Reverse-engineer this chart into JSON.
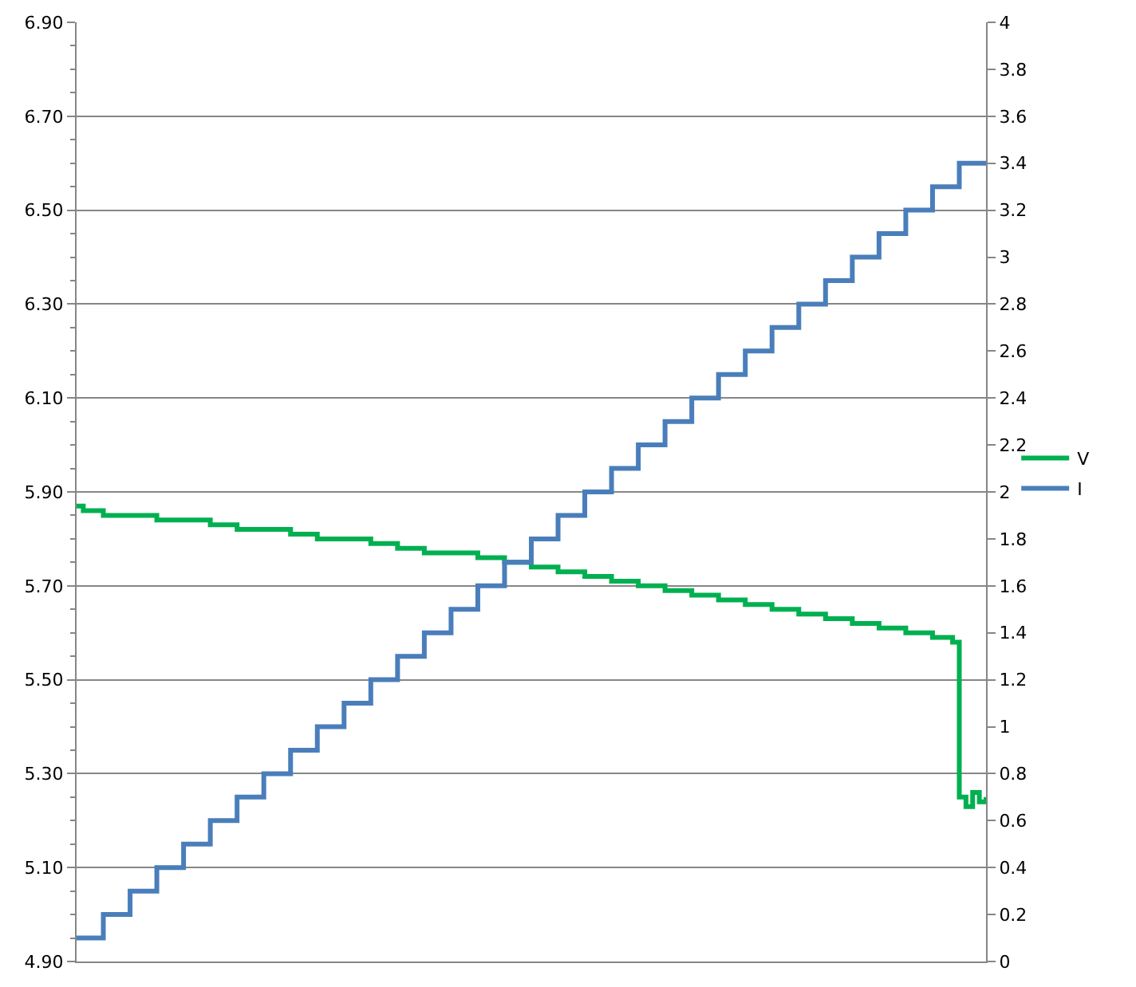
{
  "chart_data": {
    "type": "step",
    "categories": [
      null,
      null,
      null,
      null,
      null,
      null,
      null,
      null,
      null,
      null,
      null,
      null,
      null,
      null,
      null,
      null,
      null,
      null,
      null,
      null,
      null,
      null,
      null,
      null,
      null,
      null,
      null,
      null,
      null,
      null,
      null,
      null,
      null,
      null,
      null,
      null,
      null,
      null,
      null,
      null,
      null,
      null,
      null,
      null,
      null,
      null,
      null,
      null,
      null,
      null,
      null,
      null,
      null,
      null,
      null,
      null,
      null,
      null,
      null,
      null,
      null,
      null,
      null,
      null,
      null,
      null,
      null,
      null,
      null,
      null,
      null,
      null,
      null,
      null,
      null,
      null,
      null,
      null,
      null,
      null,
      null,
      null,
      null,
      null,
      null,
      null,
      null,
      null,
      null,
      null,
      null,
      null,
      null,
      null,
      null,
      null,
      null,
      null,
      null,
      null,
      null,
      null,
      null,
      null,
      null,
      null,
      null,
      null,
      null,
      null,
      null,
      null,
      null,
      null,
      null,
      null,
      null,
      null,
      null,
      null,
      null,
      null,
      null,
      null,
      null,
      null,
      null,
      null,
      null,
      null,
      null,
      null,
      null,
      null,
      null,
      null,
      null
    ],
    "series": [
      {
        "name": "V",
        "color": "#00b050",
        "axis": "y",
        "values": [
          5.87,
          5.86,
          5.86,
          5.86,
          5.85,
          5.85,
          5.85,
          5.85,
          5.85,
          5.85,
          5.85,
          5.85,
          5.84,
          5.84,
          5.84,
          5.84,
          5.84,
          5.84,
          5.84,
          5.84,
          5.83,
          5.83,
          5.83,
          5.83,
          5.82,
          5.82,
          5.82,
          5.82,
          5.82,
          5.82,
          5.82,
          5.82,
          5.81,
          5.81,
          5.81,
          5.81,
          5.8,
          5.8,
          5.8,
          5.8,
          5.8,
          5.8,
          5.8,
          5.8,
          5.79,
          5.79,
          5.79,
          5.79,
          5.78,
          5.78,
          5.78,
          5.78,
          5.77,
          5.77,
          5.77,
          5.77,
          5.77,
          5.77,
          5.77,
          5.77,
          5.76,
          5.76,
          5.76,
          5.76,
          5.75,
          5.75,
          5.75,
          5.75,
          5.74,
          5.74,
          5.74,
          5.74,
          5.73,
          5.73,
          5.73,
          5.73,
          5.72,
          5.72,
          5.72,
          5.72,
          5.71,
          5.71,
          5.71,
          5.71,
          5.7,
          5.7,
          5.7,
          5.7,
          5.69,
          5.69,
          5.69,
          5.69,
          5.68,
          5.68,
          5.68,
          5.68,
          5.67,
          5.67,
          5.67,
          5.67,
          5.66,
          5.66,
          5.66,
          5.66,
          5.65,
          5.65,
          5.65,
          5.65,
          5.64,
          5.64,
          5.64,
          5.64,
          5.63,
          5.63,
          5.63,
          5.63,
          5.62,
          5.62,
          5.62,
          5.62,
          5.61,
          5.61,
          5.61,
          5.61,
          5.6,
          5.6,
          5.6,
          5.6,
          5.59,
          5.59,
          5.59,
          5.58,
          5.25,
          5.23,
          5.26,
          5.24,
          5.25
        ]
      },
      {
        "name": "I",
        "color": "#4a7ebb",
        "axis": "y2",
        "values": [
          0.1,
          0.1,
          0.1,
          0.1,
          0.2,
          0.2,
          0.2,
          0.2,
          0.3,
          0.3,
          0.3,
          0.3,
          0.4,
          0.4,
          0.4,
          0.4,
          0.5,
          0.5,
          0.5,
          0.5,
          0.6,
          0.6,
          0.6,
          0.6,
          0.7,
          0.7,
          0.7,
          0.7,
          0.8,
          0.8,
          0.8,
          0.8,
          0.9,
          0.9,
          0.9,
          0.9,
          1.0,
          1.0,
          1.0,
          1.0,
          1.1,
          1.1,
          1.1,
          1.1,
          1.2,
          1.2,
          1.2,
          1.2,
          1.3,
          1.3,
          1.3,
          1.3,
          1.4,
          1.4,
          1.4,
          1.4,
          1.5,
          1.5,
          1.5,
          1.5,
          1.6,
          1.6,
          1.6,
          1.6,
          1.7,
          1.7,
          1.7,
          1.7,
          1.8,
          1.8,
          1.8,
          1.8,
          1.9,
          1.9,
          1.9,
          1.9,
          2.0,
          2.0,
          2.0,
          2.0,
          2.1,
          2.1,
          2.1,
          2.1,
          2.2,
          2.2,
          2.2,
          2.2,
          2.3,
          2.3,
          2.3,
          2.3,
          2.4,
          2.4,
          2.4,
          2.4,
          2.5,
          2.5,
          2.5,
          2.5,
          2.6,
          2.6,
          2.6,
          2.6,
          2.7,
          2.7,
          2.7,
          2.7,
          2.8,
          2.8,
          2.8,
          2.8,
          2.9,
          2.9,
          2.9,
          2.9,
          3.0,
          3.0,
          3.0,
          3.0,
          3.1,
          3.1,
          3.1,
          3.1,
          3.2,
          3.2,
          3.2,
          3.2,
          3.3,
          3.3,
          3.3,
          3.3,
          3.4,
          3.4,
          3.4,
          3.4,
          3.4
        ]
      }
    ],
    "ylim": [
      4.9,
      6.9
    ],
    "yticks": [
      {
        "value": 4.9,
        "label": "4.90"
      },
      {
        "value": 5.1,
        "label": "5.10"
      },
      {
        "value": 5.3,
        "label": "5.30"
      },
      {
        "value": 5.5,
        "label": "5.50"
      },
      {
        "value": 5.7,
        "label": "5.70"
      },
      {
        "value": 5.9,
        "label": "5.90"
      },
      {
        "value": 6.1,
        "label": "6.10"
      },
      {
        "value": 6.3,
        "label": "6.30"
      },
      {
        "value": 6.5,
        "label": "6.50"
      },
      {
        "value": 6.7,
        "label": "6.70"
      },
      {
        "value": 6.9,
        "label": "6.90"
      }
    ],
    "y2lim": [
      0,
      4
    ],
    "y2ticks": [
      0,
      0.2,
      0.4,
      0.6,
      0.8,
      1,
      1.2,
      1.4,
      1.6,
      1.8,
      2,
      2.2,
      2.4,
      2.6,
      2.8,
      3,
      3.2,
      3.4,
      3.6,
      3.8,
      4
    ],
    "grid": "y",
    "legend": "right",
    "tick_labels": "y",
    "line_style": "solid",
    "marker": "none"
  }
}
